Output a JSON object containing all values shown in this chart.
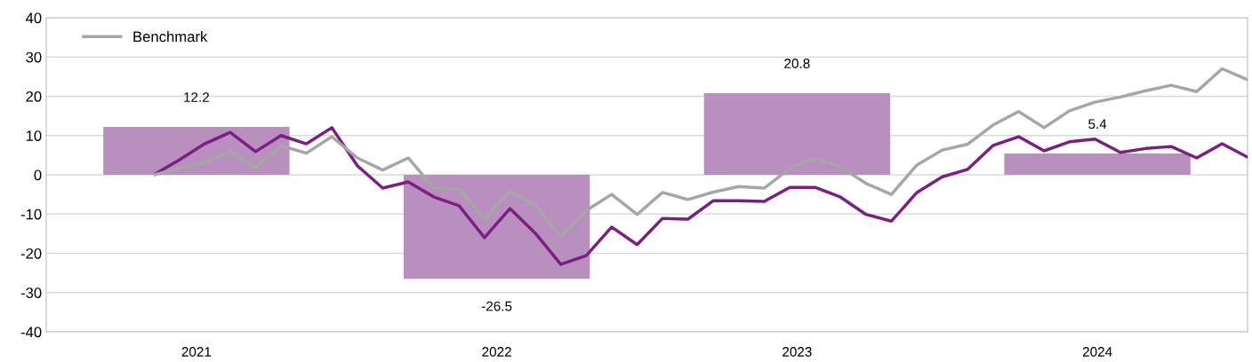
{
  "chart_data": [
    {
      "type": "bar",
      "categories": [
        "2021",
        "2022",
        "2023",
        "2024"
      ],
      "series": [
        {
          "color": "#b88fbe",
          "values": [
            12.2,
            -26.5,
            20.8,
            5.4
          ]
        }
      ],
      "data_labels": true,
      "ylim": [
        -40,
        40
      ],
      "yticks": [
        -40,
        -30,
        -20,
        -10,
        0,
        10,
        20,
        30,
        40
      ],
      "grid": "y"
    },
    {
      "type": "line",
      "categories": [
        null,
        null,
        null,
        null,
        null,
        null,
        null,
        null,
        null,
        null,
        null,
        null,
        null,
        null,
        null,
        null,
        null,
        null,
        null,
        null,
        null,
        null,
        null,
        null,
        null,
        null,
        null,
        null,
        null,
        null,
        null,
        null,
        null,
        null,
        null,
        null,
        null,
        null,
        null,
        null,
        null,
        null,
        null,
        null
      ],
      "series": [
        {
          "color": "#7b1f82",
          "values": [
            0,
            3.8,
            7.9,
            10.8,
            5.9,
            10.0,
            7.9,
            12.0,
            2.3,
            -3.4,
            -1.8,
            -5.6,
            -7.9,
            -16.0,
            -8.6,
            -14.9,
            -22.8,
            -20.6,
            -13.3,
            -17.8,
            -11.1,
            -11.3,
            -6.6,
            -6.6,
            -6.8,
            -3.2,
            -3.2,
            -5.7,
            -10.1,
            -11.8,
            -4.5,
            -0.5,
            1.4,
            7.5,
            9.7,
            6.1,
            8.4,
            9.1,
            5.7,
            6.7,
            7.2,
            4.3,
            7.9,
            4.5
          ]
        },
        {
          "name": "Benchmark",
          "color": "#a6a6a6",
          "values": [
            0,
            1.6,
            3.2,
            5.9,
            1.8,
            7.4,
            5.5,
            9.7,
            4.3,
            1.2,
            4.3,
            -3.3,
            -3.6,
            -11.3,
            -4.2,
            -7.8,
            -15.7,
            -9.1,
            -5.0,
            -10.1,
            -4.5,
            -6.3,
            -4.4,
            -3.0,
            -3.4,
            1.6,
            4.3,
            2.0,
            -2.2,
            -5.0,
            2.5,
            6.3,
            7.8,
            12.7,
            16.1,
            12.0,
            16.3,
            18.5,
            19.8,
            21.4,
            22.8,
            21.2,
            27.0,
            24.2
          ]
        }
      ],
      "ylim": [
        -40,
        40
      ],
      "yticks": [
        -40,
        -30,
        -20,
        -10,
        0,
        10,
        20,
        30,
        40
      ],
      "tick_labels": false,
      "legend": "top left",
      "line_style": "solid"
    }
  ]
}
